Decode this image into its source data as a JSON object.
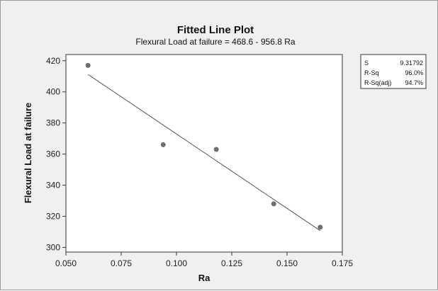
{
  "chart_data": {
    "type": "scatter",
    "title": "Fitted Line Plot",
    "subtitle": "Flexural Load at failure  =  468.6 - 956.8 Ra",
    "xlabel": "Ra",
    "ylabel": "Flexural Load at failure",
    "xlim": [
      0.05,
      0.175
    ],
    "ylim": [
      300,
      420
    ],
    "x_ticks": [
      "0.050",
      "0.075",
      "0.100",
      "0.125",
      "0.150",
      "0.175"
    ],
    "y_ticks": [
      "300",
      "320",
      "340",
      "360",
      "380",
      "400",
      "420"
    ],
    "grid": false,
    "points": [
      {
        "x": 0.06,
        "y": 417
      },
      {
        "x": 0.094,
        "y": 366
      },
      {
        "x": 0.118,
        "y": 363
      },
      {
        "x": 0.144,
        "y": 328
      },
      {
        "x": 0.165,
        "y": 313
      }
    ],
    "fit_line": {
      "intercept": 468.6,
      "slope": -956.8,
      "x_range": [
        0.06,
        0.165
      ]
    },
    "stats": [
      {
        "label": "S",
        "value": "9.31792"
      },
      {
        "label": "R-Sq",
        "value": "96.0%"
      },
      {
        "label": "R-Sq(adj)",
        "value": "94.7%"
      }
    ],
    "colors": {
      "point": "#6e6e6e",
      "line": "#555555",
      "background": "#f0f0f0",
      "plot_area": "#ffffff"
    }
  }
}
